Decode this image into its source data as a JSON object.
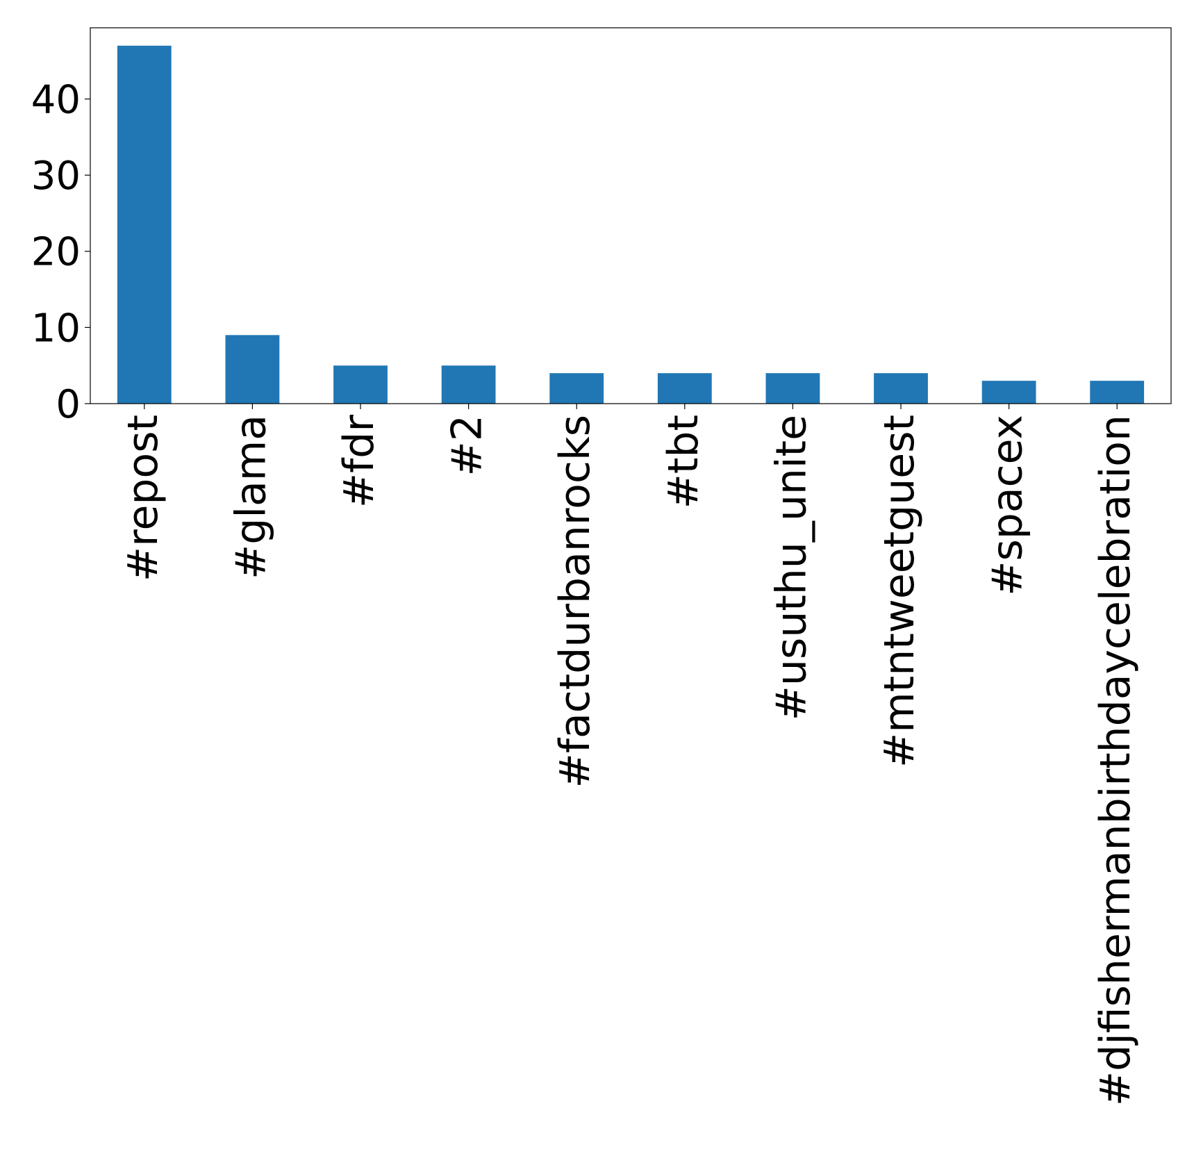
{
  "chart_data": {
    "type": "bar",
    "title": "",
    "xlabel": "",
    "ylabel": "",
    "categories": [
      "#repost",
      "#glama",
      "#fdr",
      "#2",
      "#factdurbanrocks",
      "#tbt",
      "#usuthu_unite",
      "#mtntweetguest",
      "#spacex",
      "#djfishermanbirthdaycelebration"
    ],
    "values": [
      47,
      9,
      5,
      5,
      4,
      4,
      4,
      4,
      3,
      3
    ],
    "yticks": [
      0,
      10,
      20,
      30,
      40
    ],
    "ylim": [
      0,
      49.35
    ],
    "grid": false,
    "bar_color": "#2077b4"
  }
}
